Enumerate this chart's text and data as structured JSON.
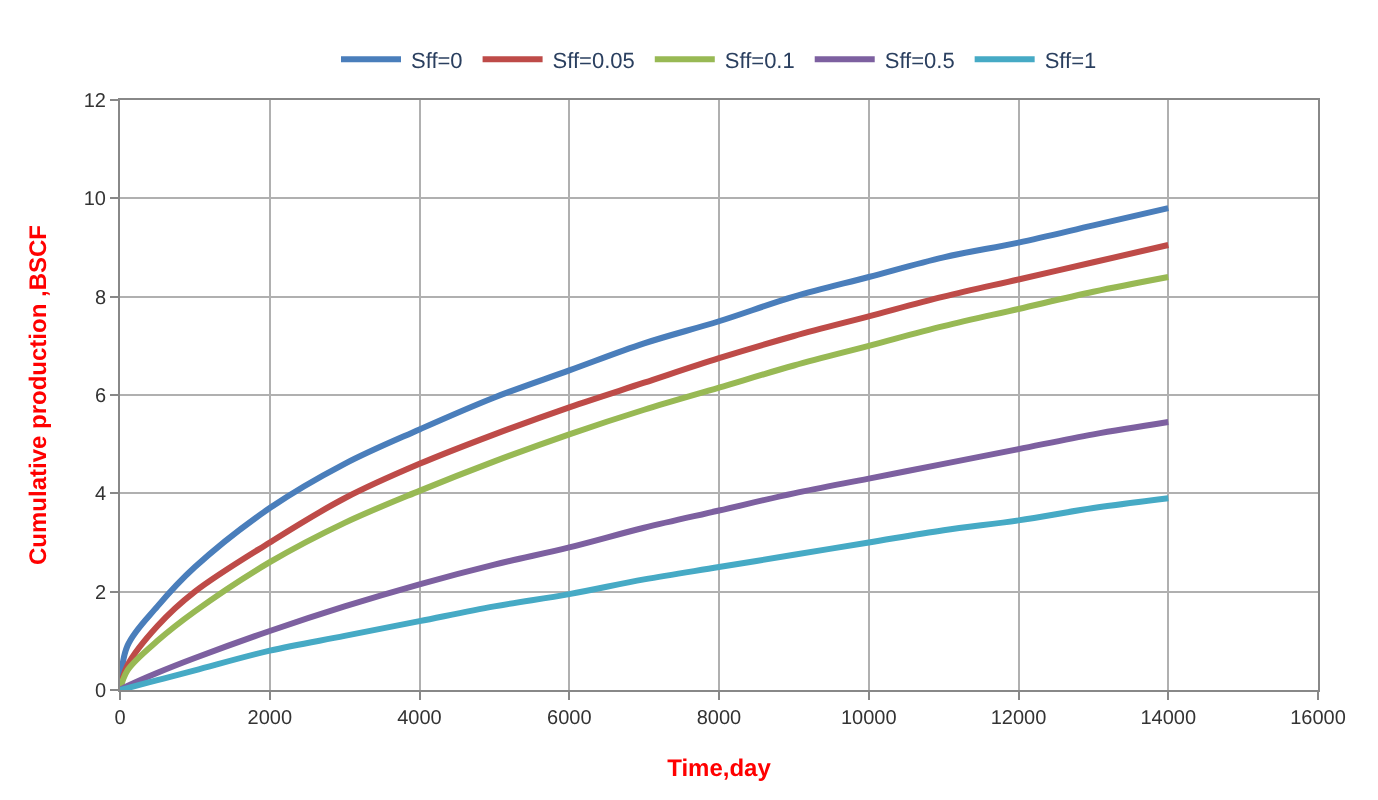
{
  "chart_data": {
    "type": "line",
    "xlabel": "Time,day",
    "ylabel": "Cumulative production ,BSCF",
    "x": [
      0,
      100,
      500,
      1000,
      2000,
      3000,
      4000,
      5000,
      6000,
      7000,
      8000,
      9000,
      10000,
      11000,
      12000,
      13000,
      14000
    ],
    "series": [
      {
        "name": "Sff=0",
        "color": "#4a7ebb",
        "values": [
          0,
          0.9,
          1.7,
          2.5,
          3.7,
          4.6,
          5.3,
          5.95,
          6.5,
          7.05,
          7.5,
          8.0,
          8.4,
          8.8,
          9.1,
          9.45,
          9.8
        ]
      },
      {
        "name": "Sff=0.05",
        "color": "#be4b48",
        "values": [
          0,
          0.5,
          1.3,
          2.0,
          3.0,
          3.9,
          4.6,
          5.2,
          5.75,
          6.25,
          6.75,
          7.2,
          7.6,
          8.0,
          8.35,
          8.7,
          9.05
        ]
      },
      {
        "name": "Sff=0.1",
        "color": "#98b954",
        "values": [
          0,
          0.4,
          1.0,
          1.6,
          2.6,
          3.4,
          4.05,
          4.65,
          5.2,
          5.7,
          6.15,
          6.6,
          7.0,
          7.4,
          7.75,
          8.1,
          8.4
        ]
      },
      {
        "name": "Sff=0.5",
        "color": "#7d60a0",
        "values": [
          0,
          0.08,
          0.35,
          0.65,
          1.2,
          1.7,
          2.15,
          2.55,
          2.9,
          3.3,
          3.65,
          4.0,
          4.3,
          4.6,
          4.9,
          5.2,
          5.45
        ]
      },
      {
        "name": "Sff=1",
        "color": "#46aac5",
        "values": [
          0,
          0.04,
          0.2,
          0.4,
          0.8,
          1.1,
          1.4,
          1.7,
          1.95,
          2.25,
          2.5,
          2.75,
          3.0,
          3.25,
          3.45,
          3.7,
          3.9
        ]
      }
    ],
    "xlim": [
      0,
      16000
    ],
    "xticks": [
      0,
      2000,
      4000,
      6000,
      8000,
      10000,
      12000,
      14000,
      16000
    ],
    "ylim": [
      0,
      12
    ],
    "yticks": [
      0,
      2,
      4,
      6,
      8,
      10,
      12
    ],
    "grid": true,
    "legend": "top",
    "marker": "none",
    "line_style": "solid"
  }
}
